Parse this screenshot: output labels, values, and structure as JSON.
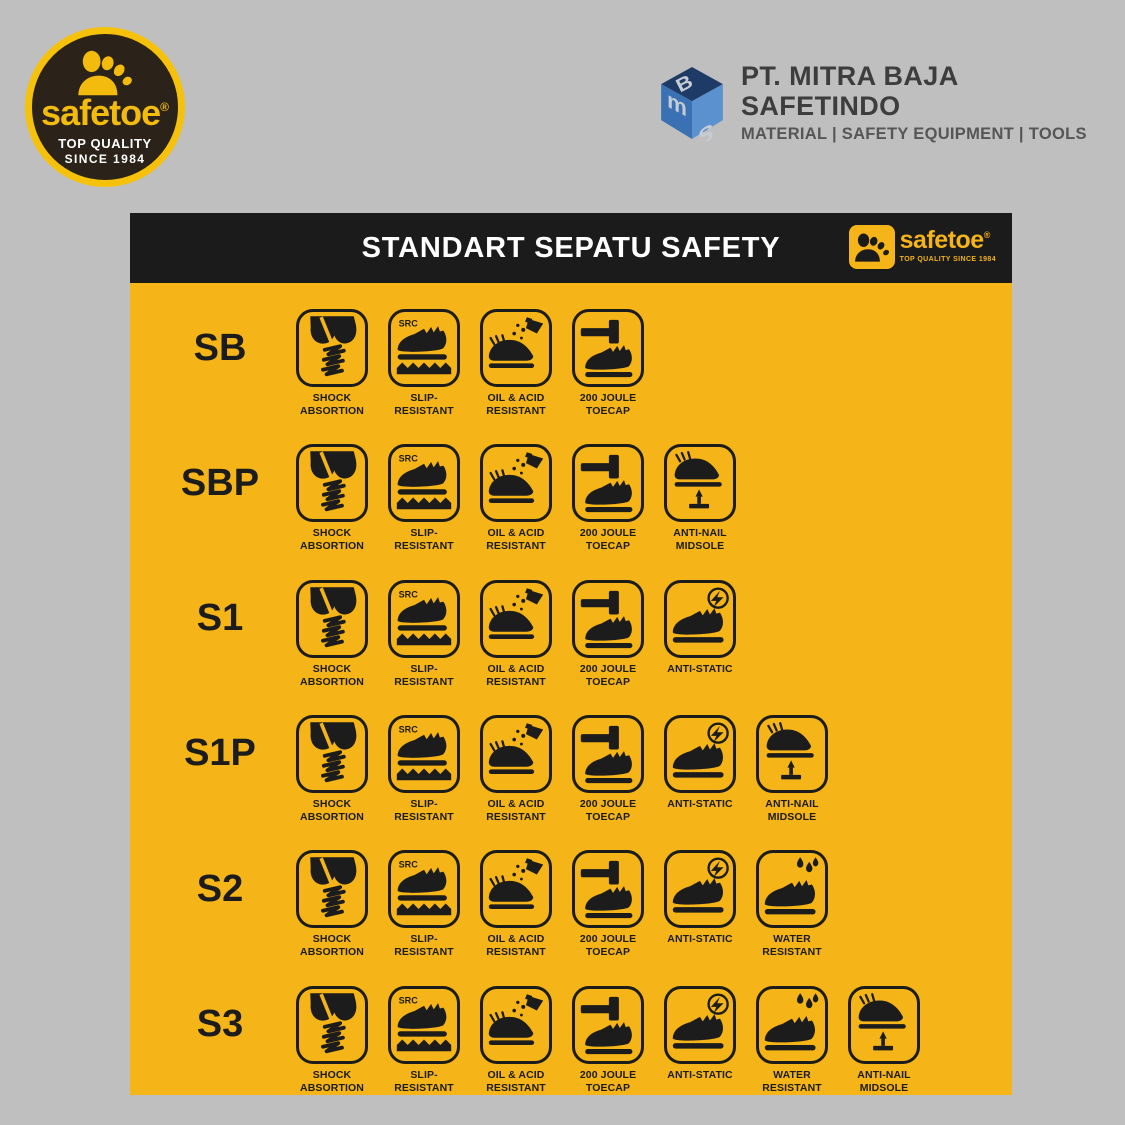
{
  "page": {
    "background_color": "#bfbfbf"
  },
  "brand_badge": {
    "wordmark": "safetoe",
    "registered_mark": "®",
    "tagline_line1": "TOP QUALITY",
    "tagline_line2": "SINCE 1984",
    "icon": "footprint-icon",
    "colors": {
      "ring": "#f6c10a",
      "background": "#2b2219",
      "wordmark": "#f2bb0e",
      "tagline": "#ffffff"
    }
  },
  "company_header": {
    "name": "PT. MITRA BAJA SAFETINDO",
    "tagline": "MATERIAL | SAFETY EQUIPMENT | TOOLS",
    "logo_letters": {
      "top": "B",
      "left": "m",
      "right": "S"
    },
    "icon": "mbs-cube-icon",
    "colors": {
      "name_text": "#3d3d3d",
      "tagline_text": "#565656",
      "cube_dark": "#1e3a66",
      "cube_mid": "#3a71b3",
      "cube_light": "#5b91cf"
    }
  },
  "chart": {
    "title": "STANDART SEPATU SAFETY",
    "header_logo": {
      "wordmark": "safetoe",
      "registered_mark": "®",
      "tagline": "TOP QUALITY SINCE 1984",
      "icon": "footprint-icon"
    },
    "colors": {
      "panel_yellow": "#f5b417",
      "header_black": "#1b1b1b",
      "ink_black": "#1c1c1c"
    },
    "slip_badge": "SRC",
    "features": {
      "shock": {
        "icon": "shock-absorption-icon",
        "label": "SHOCK\nABSORTION"
      },
      "slip": {
        "icon": "slip-resistant-icon",
        "label": "SLIP-\nRESISTANT"
      },
      "oil": {
        "icon": "oil-acid-resistant-icon",
        "label": "OIL & ACID\nRESISTANT"
      },
      "toecap": {
        "icon": "200-joule-toecap-icon",
        "label": "200 JOULE\nTOECAP"
      },
      "static": {
        "icon": "anti-static-icon",
        "label": "ANTI-STATIC"
      },
      "water": {
        "icon": "water-resistant-icon",
        "label": "WATER\nRESISTANT"
      },
      "nail": {
        "icon": "anti-nail-midsole-icon",
        "label": "ANTI-NAIL\nMIDSOLE"
      }
    },
    "rows": [
      {
        "code": "SB",
        "features": [
          "shock",
          "slip",
          "oil",
          "toecap"
        ]
      },
      {
        "code": "SBP",
        "features": [
          "shock",
          "slip",
          "oil",
          "toecap",
          "nail"
        ]
      },
      {
        "code": "S1",
        "features": [
          "shock",
          "slip",
          "oil",
          "toecap",
          "static"
        ]
      },
      {
        "code": "S1P",
        "features": [
          "shock",
          "slip",
          "oil",
          "toecap",
          "static",
          "nail"
        ]
      },
      {
        "code": "S2",
        "features": [
          "shock",
          "slip",
          "oil",
          "toecap",
          "static",
          "water"
        ]
      },
      {
        "code": "S3",
        "features": [
          "shock",
          "slip",
          "oil",
          "toecap",
          "static",
          "water",
          "nail"
        ]
      }
    ]
  }
}
